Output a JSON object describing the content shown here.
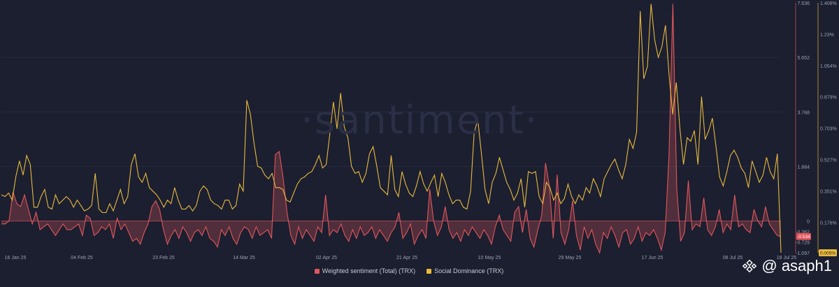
{
  "watermark": "·santiment·",
  "credit": {
    "text": "@ asaph1"
  },
  "colors": {
    "sentiment": "#e0565b",
    "dominance": "#e9b93d",
    "grid": "#262b3e",
    "background": "#1b1f30"
  },
  "chart_data": {
    "type": "line",
    "title": "",
    "x_ticks": [
      "16 Jan 25",
      "04 Feb 25",
      "23 Feb 25",
      "14 Mar 25",
      "02 Apr 25",
      "21 Apr 25",
      "10 May 25",
      "29 May 25",
      "17 Jun 25",
      "08 Jul 25",
      "18 Jul 25"
    ],
    "x_range": [
      "2025-01-16",
      "2025-07-18"
    ],
    "left_axis": {
      "label": "Weighted sentiment (Total) (TRX)",
      "ticks": [
        "7.536",
        "5.652",
        "3.768",
        "1.884",
        "0",
        "-0.362",
        "-0.729",
        "-1.097"
      ],
      "range": [
        -1.097,
        7.536
      ],
      "current_value": "-0.534"
    },
    "right_axis": {
      "label": "Social Dominance (TRX)",
      "ticks": [
        "1.406%",
        "1.23%",
        "1.054%",
        "0.879%",
        "0.703%",
        "0.527%",
        "0.351%",
        "0.176%"
      ],
      "range": [
        0.005,
        1.406
      ],
      "current_value": "0.005%"
    },
    "legend": {
      "position": "bottom",
      "entries": [
        "Weighted sentiment (Total) (TRX)",
        "Social Dominance (TRX)"
      ]
    },
    "series": [
      {
        "name": "Weighted sentiment (Total) (TRX)",
        "axis": "left",
        "style": "line-area-around-zero",
        "values": [
          -0.1,
          -0.1,
          0,
          1,
          0.6,
          0.5,
          0.9,
          0.4,
          -0.1,
          0.3,
          -0.3,
          -0.2,
          -0.1,
          -0.3,
          -0.5,
          -0.3,
          -0.1,
          -0.3,
          -0.3,
          -0.2,
          -0.1,
          -0.5,
          0.2,
          0.1,
          -0.5,
          -0.4,
          -0.2,
          -0.3,
          -0.1,
          -0.6,
          0.1,
          -0.3,
          -0.1,
          -0.4,
          -0.7,
          -0.6,
          -0.8,
          -0.4,
          -0.1,
          0.5,
          0.7,
          0.4,
          -0.3,
          -0.8,
          -0.5,
          -0.3,
          -0.6,
          -0.2,
          -0.4,
          -0.7,
          -0.4,
          -0.3,
          -0.5,
          -0.2,
          -0.6,
          -0.7,
          -0.9,
          -0.3,
          -0.5,
          -0.2,
          -0.6,
          -0.8,
          -0.4,
          -0.2,
          -0.3,
          -0.6,
          -0.2,
          -0.5,
          -0.4,
          -0.3,
          -0.6,
          2.3,
          2.4,
          1.5,
          0.3,
          -0.5,
          -0.8,
          -0.2,
          -0.6,
          -0.3,
          -0.5,
          -0.7,
          -0.2,
          -0.4,
          0.9,
          -0.5,
          -0.3,
          -0.4,
          -0.1,
          -0.5,
          -0.7,
          -0.3,
          -0.6,
          -0.2,
          -0.5,
          -0.4,
          -0.2,
          -0.6,
          -0.3,
          -0.5,
          -0.7,
          -0.4,
          -0.2,
          0.3,
          -0.6,
          -0.4,
          -0.1,
          -0.8,
          -0.5,
          -0.3,
          -0.6,
          1.1,
          0,
          -0.5,
          -0.2,
          0.5,
          -0.3,
          -0.6,
          -0.4,
          -0.7,
          -0.3,
          -0.5,
          -0.2,
          -0.4,
          -0.6,
          -0.3,
          -0.5,
          -0.8,
          -0.2,
          0.2,
          -0.3,
          -0.5,
          -0.7,
          0.3,
          0.5,
          -0.4,
          0.4,
          -0.6,
          -0.9,
          -0.3,
          0.2,
          2,
          1.2,
          -0.6,
          1.6,
          -0.4,
          -0.8,
          -0.3,
          0.7,
          -0.5,
          -1,
          -0.2,
          -0.6,
          -0.3,
          -0.8,
          -1.1,
          -0.4,
          -0.6,
          -0.2,
          -0.5,
          -0.9,
          -0.4,
          -0.3,
          -0.8,
          -0.6,
          -0.2,
          -0.7,
          -0.4,
          -0.5,
          -0.3,
          -0.6,
          -1,
          -0.4,
          2.3,
          7.5,
          1.1,
          -0.7,
          -0.4,
          1.4,
          -0.3,
          -0.1,
          -0.2,
          0.8,
          -0.3,
          -0.5,
          -0.2,
          0.4,
          -0.4,
          -0.1,
          -0.3,
          0.9,
          -0.2,
          -0.1,
          -0.3,
          -0.4,
          0.4,
          0,
          -0.2,
          0.5,
          -0.1,
          -0.3,
          -0.5,
          -0.534
        ]
      },
      {
        "name": "Social Dominance (TRX)",
        "axis": "right",
        "style": "line",
        "values": [
          0.33,
          0.32,
          0.34,
          0.3,
          0.43,
          0.52,
          0.44,
          0.55,
          0.5,
          0.26,
          0.26,
          0.32,
          0.36,
          0.26,
          0.25,
          0.33,
          0.28,
          0.3,
          0.32,
          0.3,
          0.26,
          0.3,
          0.27,
          0.24,
          0.25,
          0.27,
          0.45,
          0.25,
          0.23,
          0.23,
          0.28,
          0.24,
          0.3,
          0.36,
          0.28,
          0.32,
          0.5,
          0.56,
          0.43,
          0.4,
          0.45,
          0.37,
          0.35,
          0.33,
          0.3,
          0.26,
          0.3,
          0.28,
          0.37,
          0.3,
          0.25,
          0.25,
          0.27,
          0.24,
          0.27,
          0.35,
          0.38,
          0.36,
          0.3,
          0.28,
          0.27,
          0.25,
          0.3,
          0.3,
          0.25,
          0.27,
          0.39,
          0.35,
          0.86,
          0.78,
          0.62,
          0.49,
          0.48,
          0.44,
          0.42,
          0.45,
          0.37,
          0.37,
          0.36,
          0.3,
          0.29,
          0.34,
          0.39,
          0.42,
          0.43,
          0.45,
          0.46,
          0.5,
          0.55,
          0.48,
          0.5,
          0.67,
          0.85,
          0.7,
          0.9,
          0.71,
          0.65,
          0.49,
          0.45,
          0.46,
          0.4,
          0.45,
          0.56,
          0.6,
          0.49,
          0.37,
          0.35,
          0.33,
          0.55,
          0.36,
          0.32,
          0.46,
          0.39,
          0.34,
          0.32,
          0.38,
          0.46,
          0.39,
          0.35,
          0.4,
          0.44,
          0.32,
          0.45,
          0.4,
          0.33,
          0.28,
          0.3,
          0.3,
          0.26,
          0.25,
          0.35,
          0.68,
          0.75,
          0.56,
          0.36,
          0.28,
          0.4,
          0.45,
          0.54,
          0.47,
          0.4,
          0.36,
          0.3,
          0.34,
          0.42,
          0.26,
          0.46,
          0.45,
          0.46,
          0.32,
          0.28,
          0.4,
          0.37,
          0.3,
          0.34,
          0.28,
          0.31,
          0.39,
          0.32,
          0.28,
          0.33,
          0.3,
          0.37,
          0.34,
          0.42,
          0.38,
          0.32,
          0.42,
          0.46,
          0.5,
          0.53,
          0.47,
          0.42,
          0.5,
          0.64,
          0.59,
          0.68,
          1.36,
          0.98,
          1.05,
          1.4,
          1.2,
          1.1,
          1.16,
          1.28,
          1.0,
          0.78,
          0.96,
          0.7,
          0.5,
          0.65,
          0.63,
          0.69,
          0.5,
          0.88,
          0.64,
          0.69,
          0.76,
          0.6,
          0.43,
          0.38,
          0.46,
          0.55,
          0.58,
          0.54,
          0.48,
          0.45,
          0.37,
          0.52,
          0.46,
          0.4,
          0.44,
          0.54,
          0.46,
          0.42,
          0.56,
          0.005
        ]
      }
    ]
  }
}
